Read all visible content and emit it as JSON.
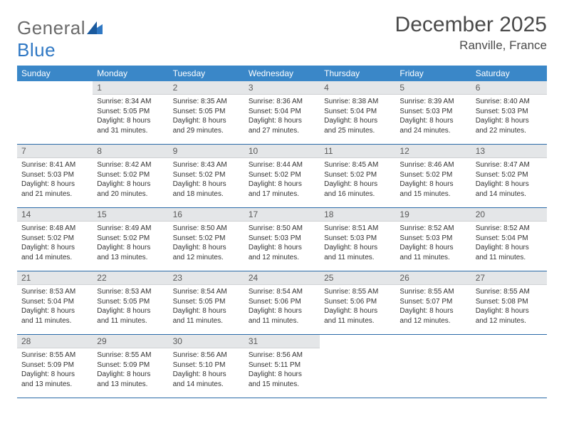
{
  "logo": {
    "word1": "General",
    "word2": "Blue"
  },
  "title": "December 2025",
  "location": "Ranville, France",
  "colors": {
    "header_bg": "#3a87c8",
    "header_text": "#ffffff",
    "daynum_bg": "#e4e6e8",
    "rule": "#2a6aa8",
    "text": "#333333",
    "title_text": "#4a4a4a",
    "logo_gray": "#6b6b6b",
    "logo_blue": "#2f78c4"
  },
  "weekdays": [
    "Sunday",
    "Monday",
    "Tuesday",
    "Wednesday",
    "Thursday",
    "Friday",
    "Saturday"
  ],
  "weeks": [
    [
      null,
      {
        "n": "1",
        "sr": "8:34 AM",
        "ss": "5:05 PM",
        "dl": "8 hours and 31 minutes."
      },
      {
        "n": "2",
        "sr": "8:35 AM",
        "ss": "5:05 PM",
        "dl": "8 hours and 29 minutes."
      },
      {
        "n": "3",
        "sr": "8:36 AM",
        "ss": "5:04 PM",
        "dl": "8 hours and 27 minutes."
      },
      {
        "n": "4",
        "sr": "8:38 AM",
        "ss": "5:04 PM",
        "dl": "8 hours and 25 minutes."
      },
      {
        "n": "5",
        "sr": "8:39 AM",
        "ss": "5:03 PM",
        "dl": "8 hours and 24 minutes."
      },
      {
        "n": "6",
        "sr": "8:40 AM",
        "ss": "5:03 PM",
        "dl": "8 hours and 22 minutes."
      }
    ],
    [
      {
        "n": "7",
        "sr": "8:41 AM",
        "ss": "5:03 PM",
        "dl": "8 hours and 21 minutes."
      },
      {
        "n": "8",
        "sr": "8:42 AM",
        "ss": "5:02 PM",
        "dl": "8 hours and 20 minutes."
      },
      {
        "n": "9",
        "sr": "8:43 AM",
        "ss": "5:02 PM",
        "dl": "8 hours and 18 minutes."
      },
      {
        "n": "10",
        "sr": "8:44 AM",
        "ss": "5:02 PM",
        "dl": "8 hours and 17 minutes."
      },
      {
        "n": "11",
        "sr": "8:45 AM",
        "ss": "5:02 PM",
        "dl": "8 hours and 16 minutes."
      },
      {
        "n": "12",
        "sr": "8:46 AM",
        "ss": "5:02 PM",
        "dl": "8 hours and 15 minutes."
      },
      {
        "n": "13",
        "sr": "8:47 AM",
        "ss": "5:02 PM",
        "dl": "8 hours and 14 minutes."
      }
    ],
    [
      {
        "n": "14",
        "sr": "8:48 AM",
        "ss": "5:02 PM",
        "dl": "8 hours and 14 minutes."
      },
      {
        "n": "15",
        "sr": "8:49 AM",
        "ss": "5:02 PM",
        "dl": "8 hours and 13 minutes."
      },
      {
        "n": "16",
        "sr": "8:50 AM",
        "ss": "5:02 PM",
        "dl": "8 hours and 12 minutes."
      },
      {
        "n": "17",
        "sr": "8:50 AM",
        "ss": "5:03 PM",
        "dl": "8 hours and 12 minutes."
      },
      {
        "n": "18",
        "sr": "8:51 AM",
        "ss": "5:03 PM",
        "dl": "8 hours and 11 minutes."
      },
      {
        "n": "19",
        "sr": "8:52 AM",
        "ss": "5:03 PM",
        "dl": "8 hours and 11 minutes."
      },
      {
        "n": "20",
        "sr": "8:52 AM",
        "ss": "5:04 PM",
        "dl": "8 hours and 11 minutes."
      }
    ],
    [
      {
        "n": "21",
        "sr": "8:53 AM",
        "ss": "5:04 PM",
        "dl": "8 hours and 11 minutes."
      },
      {
        "n": "22",
        "sr": "8:53 AM",
        "ss": "5:05 PM",
        "dl": "8 hours and 11 minutes."
      },
      {
        "n": "23",
        "sr": "8:54 AM",
        "ss": "5:05 PM",
        "dl": "8 hours and 11 minutes."
      },
      {
        "n": "24",
        "sr": "8:54 AM",
        "ss": "5:06 PM",
        "dl": "8 hours and 11 minutes."
      },
      {
        "n": "25",
        "sr": "8:55 AM",
        "ss": "5:06 PM",
        "dl": "8 hours and 11 minutes."
      },
      {
        "n": "26",
        "sr": "8:55 AM",
        "ss": "5:07 PM",
        "dl": "8 hours and 12 minutes."
      },
      {
        "n": "27",
        "sr": "8:55 AM",
        "ss": "5:08 PM",
        "dl": "8 hours and 12 minutes."
      }
    ],
    [
      {
        "n": "28",
        "sr": "8:55 AM",
        "ss": "5:09 PM",
        "dl": "8 hours and 13 minutes."
      },
      {
        "n": "29",
        "sr": "8:55 AM",
        "ss": "5:09 PM",
        "dl": "8 hours and 13 minutes."
      },
      {
        "n": "30",
        "sr": "8:56 AM",
        "ss": "5:10 PM",
        "dl": "8 hours and 14 minutes."
      },
      {
        "n": "31",
        "sr": "8:56 AM",
        "ss": "5:11 PM",
        "dl": "8 hours and 15 minutes."
      },
      null,
      null,
      null
    ]
  ],
  "labels": {
    "sunrise": "Sunrise:",
    "sunset": "Sunset:",
    "daylight": "Daylight:"
  }
}
